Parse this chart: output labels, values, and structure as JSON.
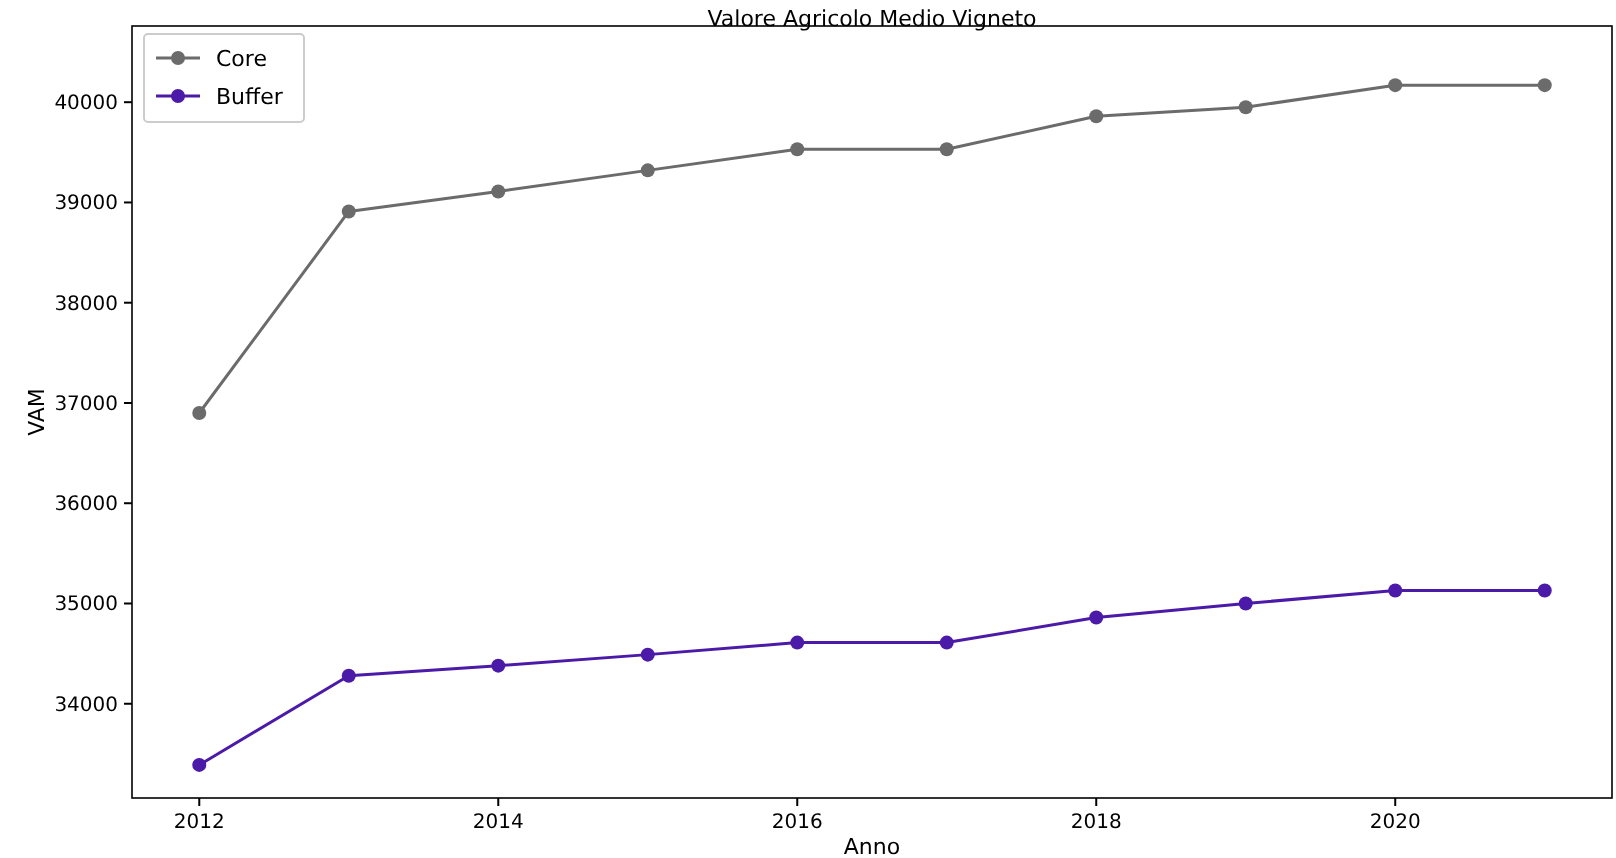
{
  "chart_data": {
    "type": "line",
    "title": "Valore Agricolo Medio Vigneto",
    "xlabel": "Anno",
    "ylabel": "VAM",
    "x": [
      2012,
      2013,
      2014,
      2015,
      2016,
      2017,
      2018,
      2019,
      2020,
      2021
    ],
    "series": [
      {
        "name": "Core",
        "color": "#6b6b6b",
        "values": [
          36900,
          38910,
          39110,
          39320,
          39530,
          39530,
          39860,
          39950,
          40170,
          40170
        ]
      },
      {
        "name": "Buffer",
        "color": "#4b1aa8",
        "values": [
          33390,
          34280,
          34380,
          34490,
          34610,
          34610,
          34860,
          35000,
          35130,
          35130
        ]
      }
    ],
    "xlim": [
      2011.55,
      2021.45
    ],
    "xticks": [
      2012,
      2014,
      2016,
      2018,
      2020
    ],
    "ylim": [
      33060,
      40760
    ],
    "yticks": [
      34000,
      35000,
      36000,
      37000,
      38000,
      39000,
      40000
    ],
    "marker": "circle",
    "legend": "top left",
    "grid": false
  }
}
